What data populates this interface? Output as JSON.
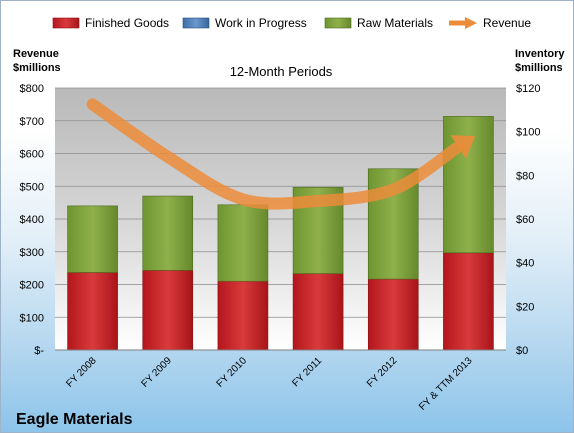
{
  "chart_data": {
    "type": "bar",
    "title": "12-Month Periods",
    "company": "Eagle Materials",
    "categories": [
      "FY 2008",
      "FY 2009",
      "FY 2010",
      "FY 2011",
      "FY 2012",
      "FY & TTM 2013"
    ],
    "left_axis": {
      "label_line1": "Revenue",
      "label_line2": "$millions",
      "ylim": [
        0,
        800
      ],
      "ticks": [
        "$-",
        "$100",
        "$200",
        "$300",
        "$400",
        "$500",
        "$600",
        "$700",
        "$800"
      ]
    },
    "right_axis": {
      "label_line1": "Inventory",
      "label_line2": "$millions",
      "ylim": [
        0,
        120
      ],
      "ticks": [
        "$0",
        "$20",
        "$40",
        "$60",
        "$80",
        "$100",
        "$120"
      ]
    },
    "series": [
      {
        "name": "Finished Goods",
        "type": "bar",
        "axis": "right",
        "color": "#c0262b",
        "values": [
          35.5,
          36.5,
          31.5,
          35,
          32.5,
          44.5
        ]
      },
      {
        "name": "Work in Progress",
        "type": "bar",
        "axis": "right",
        "color": "#4f81bd",
        "values": [
          0,
          0,
          0,
          0,
          0,
          0
        ]
      },
      {
        "name": "Raw Materials",
        "type": "bar",
        "axis": "right",
        "color": "#7ea33a",
        "values": [
          30.5,
          34,
          35,
          39.5,
          50.5,
          62.5
        ]
      },
      {
        "name": "Revenue",
        "type": "line",
        "axis": "left",
        "color": "#ec8c3a",
        "values": [
          750,
          590,
          460,
          455,
          490,
          640
        ]
      }
    ],
    "grid": true,
    "legend_position": "top"
  }
}
